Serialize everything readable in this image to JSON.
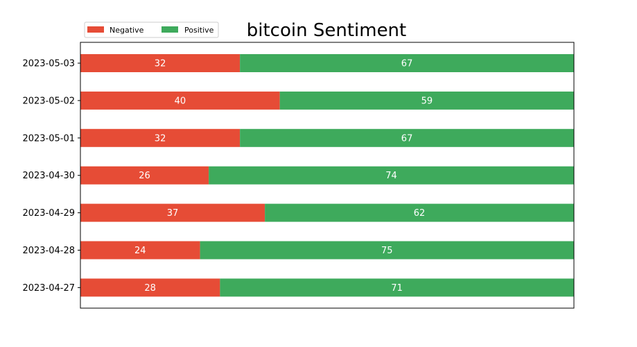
{
  "chart_data": {
    "type": "bar",
    "orientation": "horizontal",
    "stacked": true,
    "title": "bitcoin Sentiment",
    "xlabel": "",
    "ylabel": "",
    "categories": [
      "2023-05-03",
      "2023-05-02",
      "2023-05-01",
      "2023-04-30",
      "2023-04-29",
      "2023-04-28",
      "2023-04-27"
    ],
    "series": [
      {
        "name": "Negative",
        "color": "#e64c36",
        "values": [
          32,
          40,
          32,
          26,
          37,
          24,
          28
        ]
      },
      {
        "name": "Positive",
        "color": "#3eaa5c",
        "values": [
          67,
          59,
          67,
          74,
          62,
          75,
          71
        ]
      }
    ],
    "normalized": true,
    "grid": false,
    "legend": {
      "placement": "top-left",
      "entries": [
        "Negative",
        "Positive"
      ]
    }
  }
}
